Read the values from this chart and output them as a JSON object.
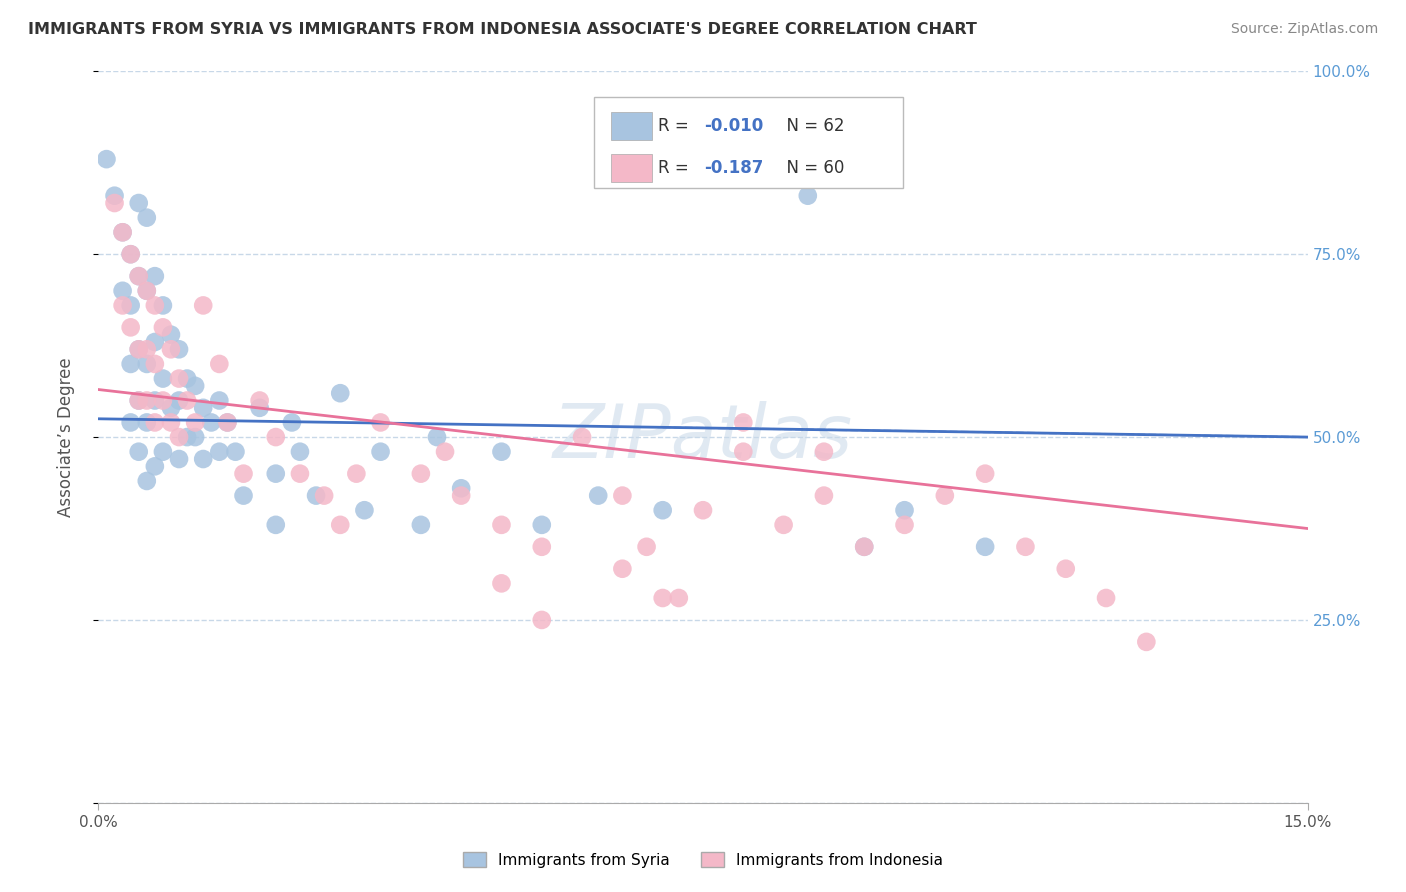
{
  "title": "IMMIGRANTS FROM SYRIA VS IMMIGRANTS FROM INDONESIA ASSOCIATE'S DEGREE CORRELATION CHART",
  "source": "Source: ZipAtlas.com",
  "ylabel": "Associate’s Degree",
  "xlim": [
    0.0,
    0.15
  ],
  "ylim": [
    0.0,
    1.0
  ],
  "yticks": [
    0.0,
    0.25,
    0.5,
    0.75,
    1.0
  ],
  "ytick_labels_right": [
    "",
    "25.0%",
    "50.0%",
    "75.0%",
    "100.0%"
  ],
  "xtick_left_label": "0.0%",
  "xtick_right_label": "15.0%",
  "syria_R": -0.01,
  "syria_N": 62,
  "indonesia_R": -0.187,
  "indonesia_N": 60,
  "syria_color": "#a8c4e0",
  "indonesia_color": "#f4b8c8",
  "syria_line_color": "#4472c4",
  "indonesia_line_color": "#e8729a",
  "grid_color": "#c8d8e8",
  "watermark": "ZIPatlas",
  "syria_x": [
    0.001,
    0.002,
    0.003,
    0.003,
    0.004,
    0.004,
    0.004,
    0.004,
    0.005,
    0.005,
    0.005,
    0.005,
    0.005,
    0.006,
    0.006,
    0.006,
    0.006,
    0.006,
    0.007,
    0.007,
    0.007,
    0.007,
    0.008,
    0.008,
    0.008,
    0.009,
    0.009,
    0.01,
    0.01,
    0.01,
    0.011,
    0.011,
    0.012,
    0.012,
    0.013,
    0.013,
    0.014,
    0.015,
    0.015,
    0.016,
    0.017,
    0.018,
    0.02,
    0.022,
    0.022,
    0.024,
    0.025,
    0.027,
    0.03,
    0.033,
    0.035,
    0.04,
    0.042,
    0.045,
    0.05,
    0.055,
    0.062,
    0.07,
    0.088,
    0.095,
    0.1,
    0.11
  ],
  "syria_y": [
    0.88,
    0.83,
    0.78,
    0.7,
    0.75,
    0.68,
    0.6,
    0.52,
    0.82,
    0.72,
    0.62,
    0.55,
    0.48,
    0.8,
    0.7,
    0.6,
    0.52,
    0.44,
    0.72,
    0.63,
    0.55,
    0.46,
    0.68,
    0.58,
    0.48,
    0.64,
    0.54,
    0.62,
    0.55,
    0.47,
    0.58,
    0.5,
    0.57,
    0.5,
    0.54,
    0.47,
    0.52,
    0.55,
    0.48,
    0.52,
    0.48,
    0.42,
    0.54,
    0.45,
    0.38,
    0.52,
    0.48,
    0.42,
    0.56,
    0.4,
    0.48,
    0.38,
    0.5,
    0.43,
    0.48,
    0.38,
    0.42,
    0.4,
    0.83,
    0.35,
    0.4,
    0.35
  ],
  "indonesia_x": [
    0.002,
    0.003,
    0.003,
    0.004,
    0.004,
    0.005,
    0.005,
    0.005,
    0.006,
    0.006,
    0.006,
    0.007,
    0.007,
    0.007,
    0.008,
    0.008,
    0.009,
    0.009,
    0.01,
    0.01,
    0.011,
    0.012,
    0.013,
    0.015,
    0.016,
    0.018,
    0.02,
    0.022,
    0.025,
    0.028,
    0.03,
    0.032,
    0.035,
    0.04,
    0.043,
    0.045,
    0.05,
    0.055,
    0.06,
    0.065,
    0.068,
    0.07,
    0.075,
    0.08,
    0.085,
    0.09,
    0.095,
    0.1,
    0.105,
    0.11,
    0.115,
    0.12,
    0.125,
    0.13,
    0.09,
    0.08,
    0.072,
    0.065,
    0.055,
    0.05
  ],
  "indonesia_y": [
    0.82,
    0.78,
    0.68,
    0.75,
    0.65,
    0.72,
    0.62,
    0.55,
    0.7,
    0.62,
    0.55,
    0.68,
    0.6,
    0.52,
    0.65,
    0.55,
    0.62,
    0.52,
    0.58,
    0.5,
    0.55,
    0.52,
    0.68,
    0.6,
    0.52,
    0.45,
    0.55,
    0.5,
    0.45,
    0.42,
    0.38,
    0.45,
    0.52,
    0.45,
    0.48,
    0.42,
    0.38,
    0.35,
    0.5,
    0.42,
    0.35,
    0.28,
    0.4,
    0.48,
    0.38,
    0.42,
    0.35,
    0.38,
    0.42,
    0.45,
    0.35,
    0.32,
    0.28,
    0.22,
    0.48,
    0.52,
    0.28,
    0.32,
    0.25,
    0.3
  ],
  "syria_trendline_x": [
    0.0,
    0.15
  ],
  "syria_trendline_y": [
    0.525,
    0.5
  ],
  "indonesia_trendline_x": [
    0.0,
    0.15
  ],
  "indonesia_trendline_y": [
    0.565,
    0.375
  ],
  "legend_label_syria": "Immigrants from Syria",
  "legend_label_indonesia": "Immigrants from Indonesia"
}
